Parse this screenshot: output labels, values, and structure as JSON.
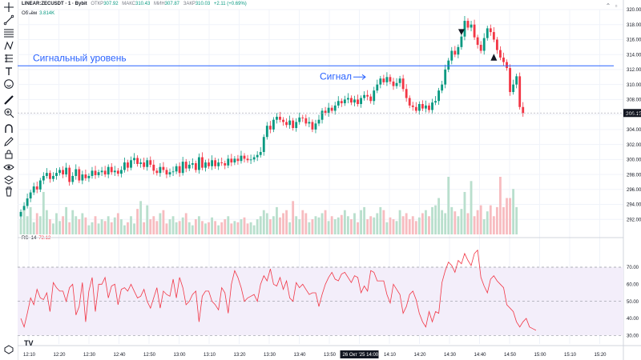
{
  "header": {
    "symbol": "LINEAR:ZECUSDT · 1 · Bybit",
    "open_label": "ОТКР",
    "open": "307.92",
    "high_label": "МАКС",
    "high": "310.43",
    "low_label": "МИН",
    "low": "307.87",
    "close_label": "ЗАКР",
    "close": "310.03",
    "change": "+2.11 (+0.69%)"
  },
  "volume_label": "Объём",
  "volume_value": "3.814K",
  "rsi_label": "RSI 14",
  "rsi_value": "72.12",
  "tv_logo": "TV",
  "price_badge": "306.15",
  "colors": {
    "up": "#089981",
    "down": "#f23645",
    "up_vol": "#b9dfcd",
    "down_vol": "#f7bcc0",
    "annotation": "#2962ff",
    "rsi": "#f23645",
    "rsi_band": "#f3eefa"
  },
  "chart_data": {
    "type": "candlestick",
    "price_axis": {
      "min": 290,
      "max": 320,
      "ticks": [
        292.0,
        294.0,
        296.0,
        298.0,
        300.0,
        302.0,
        304.0,
        306.0,
        308.0,
        310.0,
        312.0,
        314.0,
        316.0,
        318.0,
        320.0
      ]
    },
    "time_axis": {
      "ticks": [
        "12:10",
        "12:20",
        "12:30",
        "12:40",
        "12:50",
        "13:00",
        "13:10",
        "13:20",
        "13:30",
        "13:40",
        "13:50",
        "14:00",
        "14:10",
        "14:20",
        "14:30",
        "14:40",
        "14:50",
        "15:00",
        "15:10",
        "15:20"
      ],
      "highlight": "26 Окт '25    14:00"
    },
    "closes": [
      293.0,
      293.8,
      294.8,
      295.6,
      296.4,
      296.0,
      297.2,
      297.8,
      298.2,
      297.4,
      297.8,
      298.2,
      298.6,
      298.0,
      298.9,
      297.0,
      297.8,
      298.7,
      297.2,
      298.0,
      297.5,
      297.8,
      298.5,
      297.9,
      298.3,
      298.5,
      298.0,
      299.0,
      298.3,
      298.5,
      298.1,
      298.6,
      299.6,
      298.9,
      299.9,
      300.2,
      299.4,
      299.6,
      299.0,
      299.9,
      299.3,
      298.5,
      298.2,
      299.0,
      298.6,
      298.0,
      298.3,
      298.4,
      299.1,
      298.2,
      299.7,
      298.8,
      299.3,
      299.5,
      298.6,
      300.3,
      298.9,
      299.6,
      299.1,
      299.9,
      299.1,
      299.6,
      299.5,
      299.2,
      300.1,
      299.6,
      300.1,
      299.8,
      300.5,
      300.1,
      299.9,
      300.0,
      300.3,
      300.6,
      301.0,
      303.0,
      304.5,
      304.0,
      305.3,
      305.7,
      305.3,
      305.0,
      304.6,
      305.2,
      304.2,
      305.0,
      305.6,
      305.5,
      304.8,
      305.0,
      304.0,
      304.8,
      305.3,
      306.5,
      306.2,
      306.9,
      306.5,
      307.2,
      307.8,
      307.5,
      308.0,
      308.2,
      307.6,
      308.0,
      307.4,
      308.2,
      308.6,
      308.4,
      307.8,
      309.2,
      310.0,
      310.8,
      310.3,
      311.0,
      310.4,
      309.8,
      310.2,
      310.8,
      309.4,
      308.2,
      307.2,
      307.0,
      306.5,
      307.4,
      306.8,
      307.2,
      306.6,
      307.6,
      307.8,
      309.2,
      310.0,
      312.0,
      313.2,
      314.5,
      314.0,
      315.0,
      316.4,
      318.5,
      317.6,
      318.0,
      316.3,
      315.3,
      314.5,
      316.2,
      317.5,
      317.0,
      316.0,
      314.6,
      313.6,
      313.0,
      312.2,
      309.0,
      310.0,
      311.1,
      307.0,
      306.2
    ],
    "volumes": [
      25,
      40,
      30,
      45,
      20,
      35,
      30,
      70,
      40,
      25,
      18,
      35,
      22,
      30,
      45,
      20,
      40,
      30,
      25,
      35,
      28,
      15,
      20,
      30,
      18,
      25,
      22,
      30,
      20,
      28,
      35,
      25,
      15,
      20,
      30,
      18,
      42,
      55,
      20,
      48,
      25,
      30,
      22,
      35,
      40,
      18,
      25,
      30,
      20,
      22,
      28,
      35,
      20,
      15,
      25,
      30,
      22,
      18,
      20,
      28,
      22,
      15,
      20,
      25,
      30,
      18,
      22,
      20,
      25,
      28,
      18,
      20,
      15,
      25,
      30,
      40,
      35,
      25,
      30,
      45,
      28,
      35,
      40,
      20,
      55,
      30,
      25,
      40,
      35,
      20,
      25,
      30,
      28,
      35,
      40,
      22,
      30,
      25,
      28,
      32,
      40,
      30,
      25,
      35,
      20,
      40,
      45,
      25,
      30,
      28,
      35,
      45,
      40,
      20,
      28,
      25,
      22,
      40,
      30,
      35,
      25,
      30,
      22,
      28,
      35,
      40,
      30,
      45,
      48,
      60,
      40,
      35,
      95,
      45,
      38,
      30,
      42,
      70,
      35,
      88,
      30,
      40,
      48,
      25,
      38,
      48,
      30,
      45,
      95,
      45,
      60,
      60,
      75,
      45
    ],
    "rsi": {
      "levels": [
        70,
        50,
        30
      ],
      "axis_ticks": [
        30.0,
        40.0,
        50.0,
        60.0,
        70.0
      ],
      "values": [
        40,
        35,
        43,
        52,
        48,
        57,
        52,
        51,
        55,
        44,
        61,
        58,
        56,
        56,
        50,
        58,
        60,
        42,
        47,
        61,
        38,
        56,
        64,
        44,
        60,
        60,
        64,
        52,
        59,
        60,
        48,
        57,
        58,
        56,
        60,
        56,
        52,
        53,
        57,
        50,
        46,
        52,
        58,
        46,
        56,
        54,
        53,
        63,
        52,
        64,
        58,
        48,
        50,
        54,
        56,
        38,
        53,
        56,
        56,
        50,
        48,
        45,
        58,
        55,
        43,
        60,
        68,
        64,
        58,
        50,
        52,
        53,
        54,
        50,
        60,
        65,
        62,
        69,
        60,
        59,
        64,
        57,
        62,
        52,
        50,
        61,
        58,
        60,
        57,
        54,
        55,
        55,
        47,
        54,
        60,
        64,
        67,
        63,
        62,
        66,
        67,
        64,
        61,
        65,
        64,
        55,
        59,
        56,
        68,
        67,
        62,
        62,
        62,
        54,
        49,
        60,
        57,
        54,
        43,
        47,
        54,
        56,
        51,
        43,
        38,
        35,
        44,
        38,
        44,
        43,
        61,
        68,
        73,
        71,
        67,
        74,
        72,
        78,
        74,
        71,
        78,
        80,
        64,
        59,
        55,
        63,
        65,
        62,
        60,
        58,
        48,
        46,
        44,
        38,
        35,
        38,
        40,
        35,
        34,
        33
      ]
    },
    "annotations": [
      {
        "text": "Сигнальный уровень",
        "price": 312.5
      },
      {
        "text": "Сигнал",
        "price": 311.0
      }
    ]
  }
}
